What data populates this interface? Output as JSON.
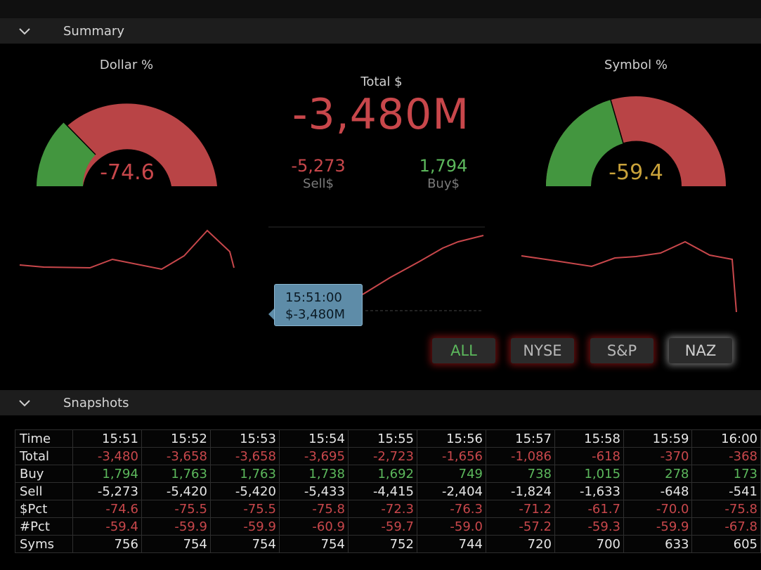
{
  "summary": {
    "section_title": "Summary",
    "dollar_pct": {
      "label": "Dollar %",
      "value": "-74.6",
      "gauge_fraction": 0.19
    },
    "symbol_pct": {
      "label": "Symbol %",
      "value": "-59.4",
      "gauge_fraction": 0.3
    },
    "total": {
      "label": "Total $",
      "value": "-3,480M"
    },
    "sell": {
      "value": "-5,273",
      "label": "Sell$"
    },
    "buy": {
      "value": "1,794",
      "label": "Buy$"
    },
    "tooltip": {
      "time": "15:51:00",
      "value": "$-3,480M"
    },
    "market_buttons": [
      "ALL",
      "NYSE",
      "S&P",
      "NAZ"
    ]
  },
  "snapshots": {
    "section_title": "Snapshots",
    "columns": [
      "Time",
      "15:51",
      "15:52",
      "15:53",
      "15:54",
      "15:55",
      "15:56",
      "15:57",
      "15:58",
      "15:59",
      "16:00"
    ],
    "rows": [
      {
        "label": "Total",
        "values": [
          "-3,480",
          "-3,658",
          "-3,658",
          "-3,695",
          "-2,723",
          "-1,656",
          "-1,086",
          "-618",
          "-370",
          "-368"
        ]
      },
      {
        "label": "Buy",
        "values": [
          "1,794",
          "1,763",
          "1,763",
          "1,738",
          "1,692",
          "749",
          "738",
          "1,015",
          "278",
          "173"
        ]
      },
      {
        "label": "Sell",
        "values": [
          "-5,273",
          "-5,420",
          "-5,420",
          "-5,433",
          "-4,415",
          "-2,404",
          "-1,824",
          "-1,633",
          "-648",
          "-541"
        ]
      },
      {
        "label": "$Pct",
        "values": [
          "-74.6",
          "-75.5",
          "-75.5",
          "-75.8",
          "-72.3",
          "-76.3",
          "-71.2",
          "-61.7",
          "-70.0",
          "-75.8"
        ]
      },
      {
        "label": "#Pct",
        "values": [
          "-59.4",
          "-59.9",
          "-59.9",
          "-60.9",
          "-59.7",
          "-59.0",
          "-57.2",
          "-59.3",
          "-59.9",
          "-67.8"
        ]
      },
      {
        "label": "Syms",
        "values": [
          "756",
          "754",
          "754",
          "754",
          "752",
          "744",
          "720",
          "700",
          "633",
          "605"
        ]
      }
    ]
  },
  "colors": {
    "negative": "#c8474b",
    "positive": "#5cb85c",
    "gauge_green": "#43963f",
    "gauge_red": "#b94446",
    "symbol_value": "#c9a23a"
  }
}
